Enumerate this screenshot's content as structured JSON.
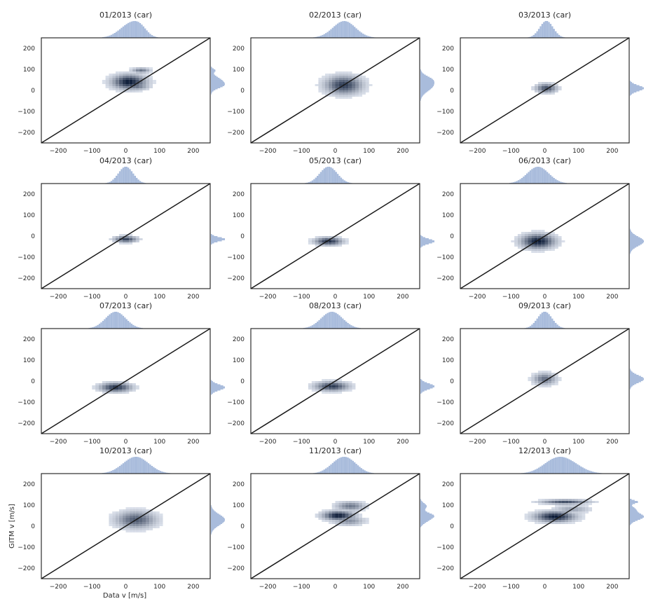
{
  "figure": {
    "xlabel": "Data v [m/s]",
    "ylabel": "GITM v [m/s]",
    "colors": {
      "density_low": "#e8edf6",
      "density_high": "#0b1a36",
      "marginal": "#a9bcdc",
      "identity_line": "#1a1a1a",
      "axes_frame": "#1a1a1a",
      "text": "#262626"
    }
  },
  "chart_data": [
    {
      "type": "heatmap",
      "title": "01/2013 (car)",
      "xlim": [
        -250,
        250
      ],
      "ylim": [
        -250,
        250
      ],
      "xticks": [
        -200,
        -100,
        0,
        100,
        200
      ],
      "yticks": [
        -200,
        -100,
        0,
        100,
        200
      ],
      "reference_line": "y = x",
      "marginals": "top and right histograms",
      "clusters": [
        {
          "x": 10,
          "y": 40,
          "sx": 32,
          "sy": 22,
          "weight": 1.0,
          "peak": 1.0
        },
        {
          "x": 45,
          "y": 95,
          "sx": 18,
          "sy": 8,
          "weight": 0.35,
          "peak": 0.55
        },
        {
          "x": 30,
          "y": 20,
          "sx": 25,
          "sy": 12,
          "weight": 0.4,
          "peak": 0.6
        }
      ]
    },
    {
      "type": "heatmap",
      "title": "02/2013 (car)",
      "xlim": [
        -250,
        250
      ],
      "ylim": [
        -250,
        250
      ],
      "xticks": [
        -200,
        -100,
        0,
        100,
        200
      ],
      "yticks": [
        -200,
        -100,
        0,
        100,
        200
      ],
      "reference_line": "y = x",
      "marginals": "top and right histograms",
      "clusters": [
        {
          "x": 25,
          "y": 25,
          "sx": 35,
          "sy": 28,
          "weight": 1.0,
          "peak": 0.85
        },
        {
          "x": 30,
          "y": 55,
          "sx": 30,
          "sy": 15,
          "weight": 0.35,
          "peak": 0.35
        }
      ]
    },
    {
      "type": "heatmap",
      "title": "03/2013 (car)",
      "xlim": [
        -250,
        250
      ],
      "ylim": [
        -250,
        250
      ],
      "xticks": [
        -200,
        -100,
        0,
        100,
        200
      ],
      "yticks": [
        -200,
        -100,
        0,
        100,
        200
      ],
      "reference_line": "y = x",
      "marginals": "top and right histograms",
      "clusters": [
        {
          "x": 5,
          "y": 10,
          "sx": 20,
          "sy": 14,
          "weight": 1.0,
          "peak": 0.75
        }
      ]
    },
    {
      "type": "heatmap",
      "title": "04/2013 (car)",
      "xlim": [
        -250,
        250
      ],
      "ylim": [
        -250,
        250
      ],
      "xticks": [
        -200,
        -100,
        0,
        100,
        200
      ],
      "yticks": [
        -200,
        -100,
        0,
        100,
        200
      ],
      "reference_line": "y = x",
      "marginals": "top and right histograms",
      "clusters": [
        {
          "x": 0,
          "y": -15,
          "sx": 22,
          "sy": 10,
          "weight": 1.0,
          "peak": 0.8
        }
      ]
    },
    {
      "type": "heatmap",
      "title": "05/2013 (car)",
      "xlim": [
        -250,
        250
      ],
      "ylim": [
        -250,
        250
      ],
      "xticks": [
        -200,
        -100,
        0,
        100,
        200
      ],
      "yticks": [
        -200,
        -100,
        0,
        100,
        200
      ],
      "reference_line": "y = x",
      "marginals": "top and right histograms",
      "clusters": [
        {
          "x": -20,
          "y": -25,
          "sx": 26,
          "sy": 12,
          "weight": 1.0,
          "peak": 0.9
        }
      ]
    },
    {
      "type": "heatmap",
      "title": "06/2013 (car)",
      "xlim": [
        -250,
        250
      ],
      "ylim": [
        -250,
        250
      ],
      "xticks": [
        -200,
        -100,
        0,
        100,
        200
      ],
      "yticks": [
        -200,
        -100,
        0,
        100,
        200
      ],
      "reference_line": "y = x",
      "marginals": "top and right histograms",
      "clusters": [
        {
          "x": -20,
          "y": -25,
          "sx": 32,
          "sy": 22,
          "weight": 1.0,
          "peak": 1.0
        }
      ]
    },
    {
      "type": "heatmap",
      "title": "07/2013 (car)",
      "xlim": [
        -250,
        250
      ],
      "ylim": [
        -250,
        250
      ],
      "xticks": [
        -200,
        -100,
        0,
        100,
        200
      ],
      "yticks": [
        -200,
        -100,
        0,
        100,
        200
      ],
      "reference_line": "y = x",
      "marginals": "top and right histograms",
      "clusters": [
        {
          "x": -30,
          "y": -30,
          "sx": 30,
          "sy": 14,
          "weight": 1.0,
          "peak": 0.9
        }
      ]
    },
    {
      "type": "heatmap",
      "title": "08/2013 (car)",
      "xlim": [
        -250,
        250
      ],
      "ylim": [
        -250,
        250
      ],
      "xticks": [
        -200,
        -100,
        0,
        100,
        200
      ],
      "yticks": [
        -200,
        -100,
        0,
        100,
        200
      ],
      "reference_line": "y = x",
      "marginals": "top and right histograms",
      "clusters": [
        {
          "x": -10,
          "y": -25,
          "sx": 32,
          "sy": 14,
          "weight": 1.0,
          "peak": 0.85
        }
      ]
    },
    {
      "type": "heatmap",
      "title": "09/2013 (car)",
      "xlim": [
        -250,
        250
      ],
      "ylim": [
        -250,
        250
      ],
      "xticks": [
        -200,
        -100,
        0,
        100,
        200
      ],
      "yticks": [
        -200,
        -100,
        0,
        100,
        200
      ],
      "reference_line": "y = x",
      "marginals": "top and right histograms",
      "clusters": [
        {
          "x": 0,
          "y": 10,
          "sx": 22,
          "sy": 18,
          "weight": 1.0,
          "peak": 0.6
        }
      ]
    },
    {
      "type": "heatmap",
      "title": "10/2013 (car)",
      "xlim": [
        -250,
        250
      ],
      "ylim": [
        -250,
        250
      ],
      "xticks": [
        -200,
        -100,
        0,
        100,
        200
      ],
      "yticks": [
        -200,
        -100,
        0,
        100,
        200
      ],
      "reference_line": "y = x",
      "marginals": "top and right histograms",
      "clusters": [
        {
          "x": 30,
          "y": 30,
          "sx": 38,
          "sy": 26,
          "weight": 1.0,
          "peak": 0.7
        }
      ]
    },
    {
      "type": "heatmap",
      "title": "11/2013 (car)",
      "xlim": [
        -250,
        250
      ],
      "ylim": [
        -250,
        250
      ],
      "xticks": [
        -200,
        -100,
        0,
        100,
        200
      ],
      "yticks": [
        -200,
        -100,
        0,
        100,
        200
      ],
      "reference_line": "y = x",
      "marginals": "top and right histograms",
      "clusters": [
        {
          "x": 10,
          "y": 50,
          "sx": 30,
          "sy": 14,
          "weight": 1.0,
          "peak": 1.0
        },
        {
          "x": 45,
          "y": 95,
          "sx": 28,
          "sy": 14,
          "weight": 0.5,
          "peak": 0.55
        },
        {
          "x": 40,
          "y": 25,
          "sx": 30,
          "sy": 14,
          "weight": 0.45,
          "peak": 0.45
        }
      ]
    },
    {
      "type": "heatmap",
      "title": "12/2013 (car)",
      "xlim": [
        -250,
        250
      ],
      "ylim": [
        -250,
        250
      ],
      "xticks": [
        -200,
        -100,
        0,
        100,
        200
      ],
      "yticks": [
        -200,
        -100,
        0,
        100,
        200
      ],
      "reference_line": "y = x",
      "marginals": "top and right histograms",
      "clusters": [
        {
          "x": 30,
          "y": 45,
          "sx": 38,
          "sy": 16,
          "weight": 1.0,
          "peak": 1.0
        },
        {
          "x": 60,
          "y": 115,
          "sx": 45,
          "sy": 7,
          "weight": 0.6,
          "peak": 0.75
        },
        {
          "x": 80,
          "y": 80,
          "sx": 35,
          "sy": 12,
          "weight": 0.35,
          "peak": 0.35
        }
      ]
    }
  ]
}
